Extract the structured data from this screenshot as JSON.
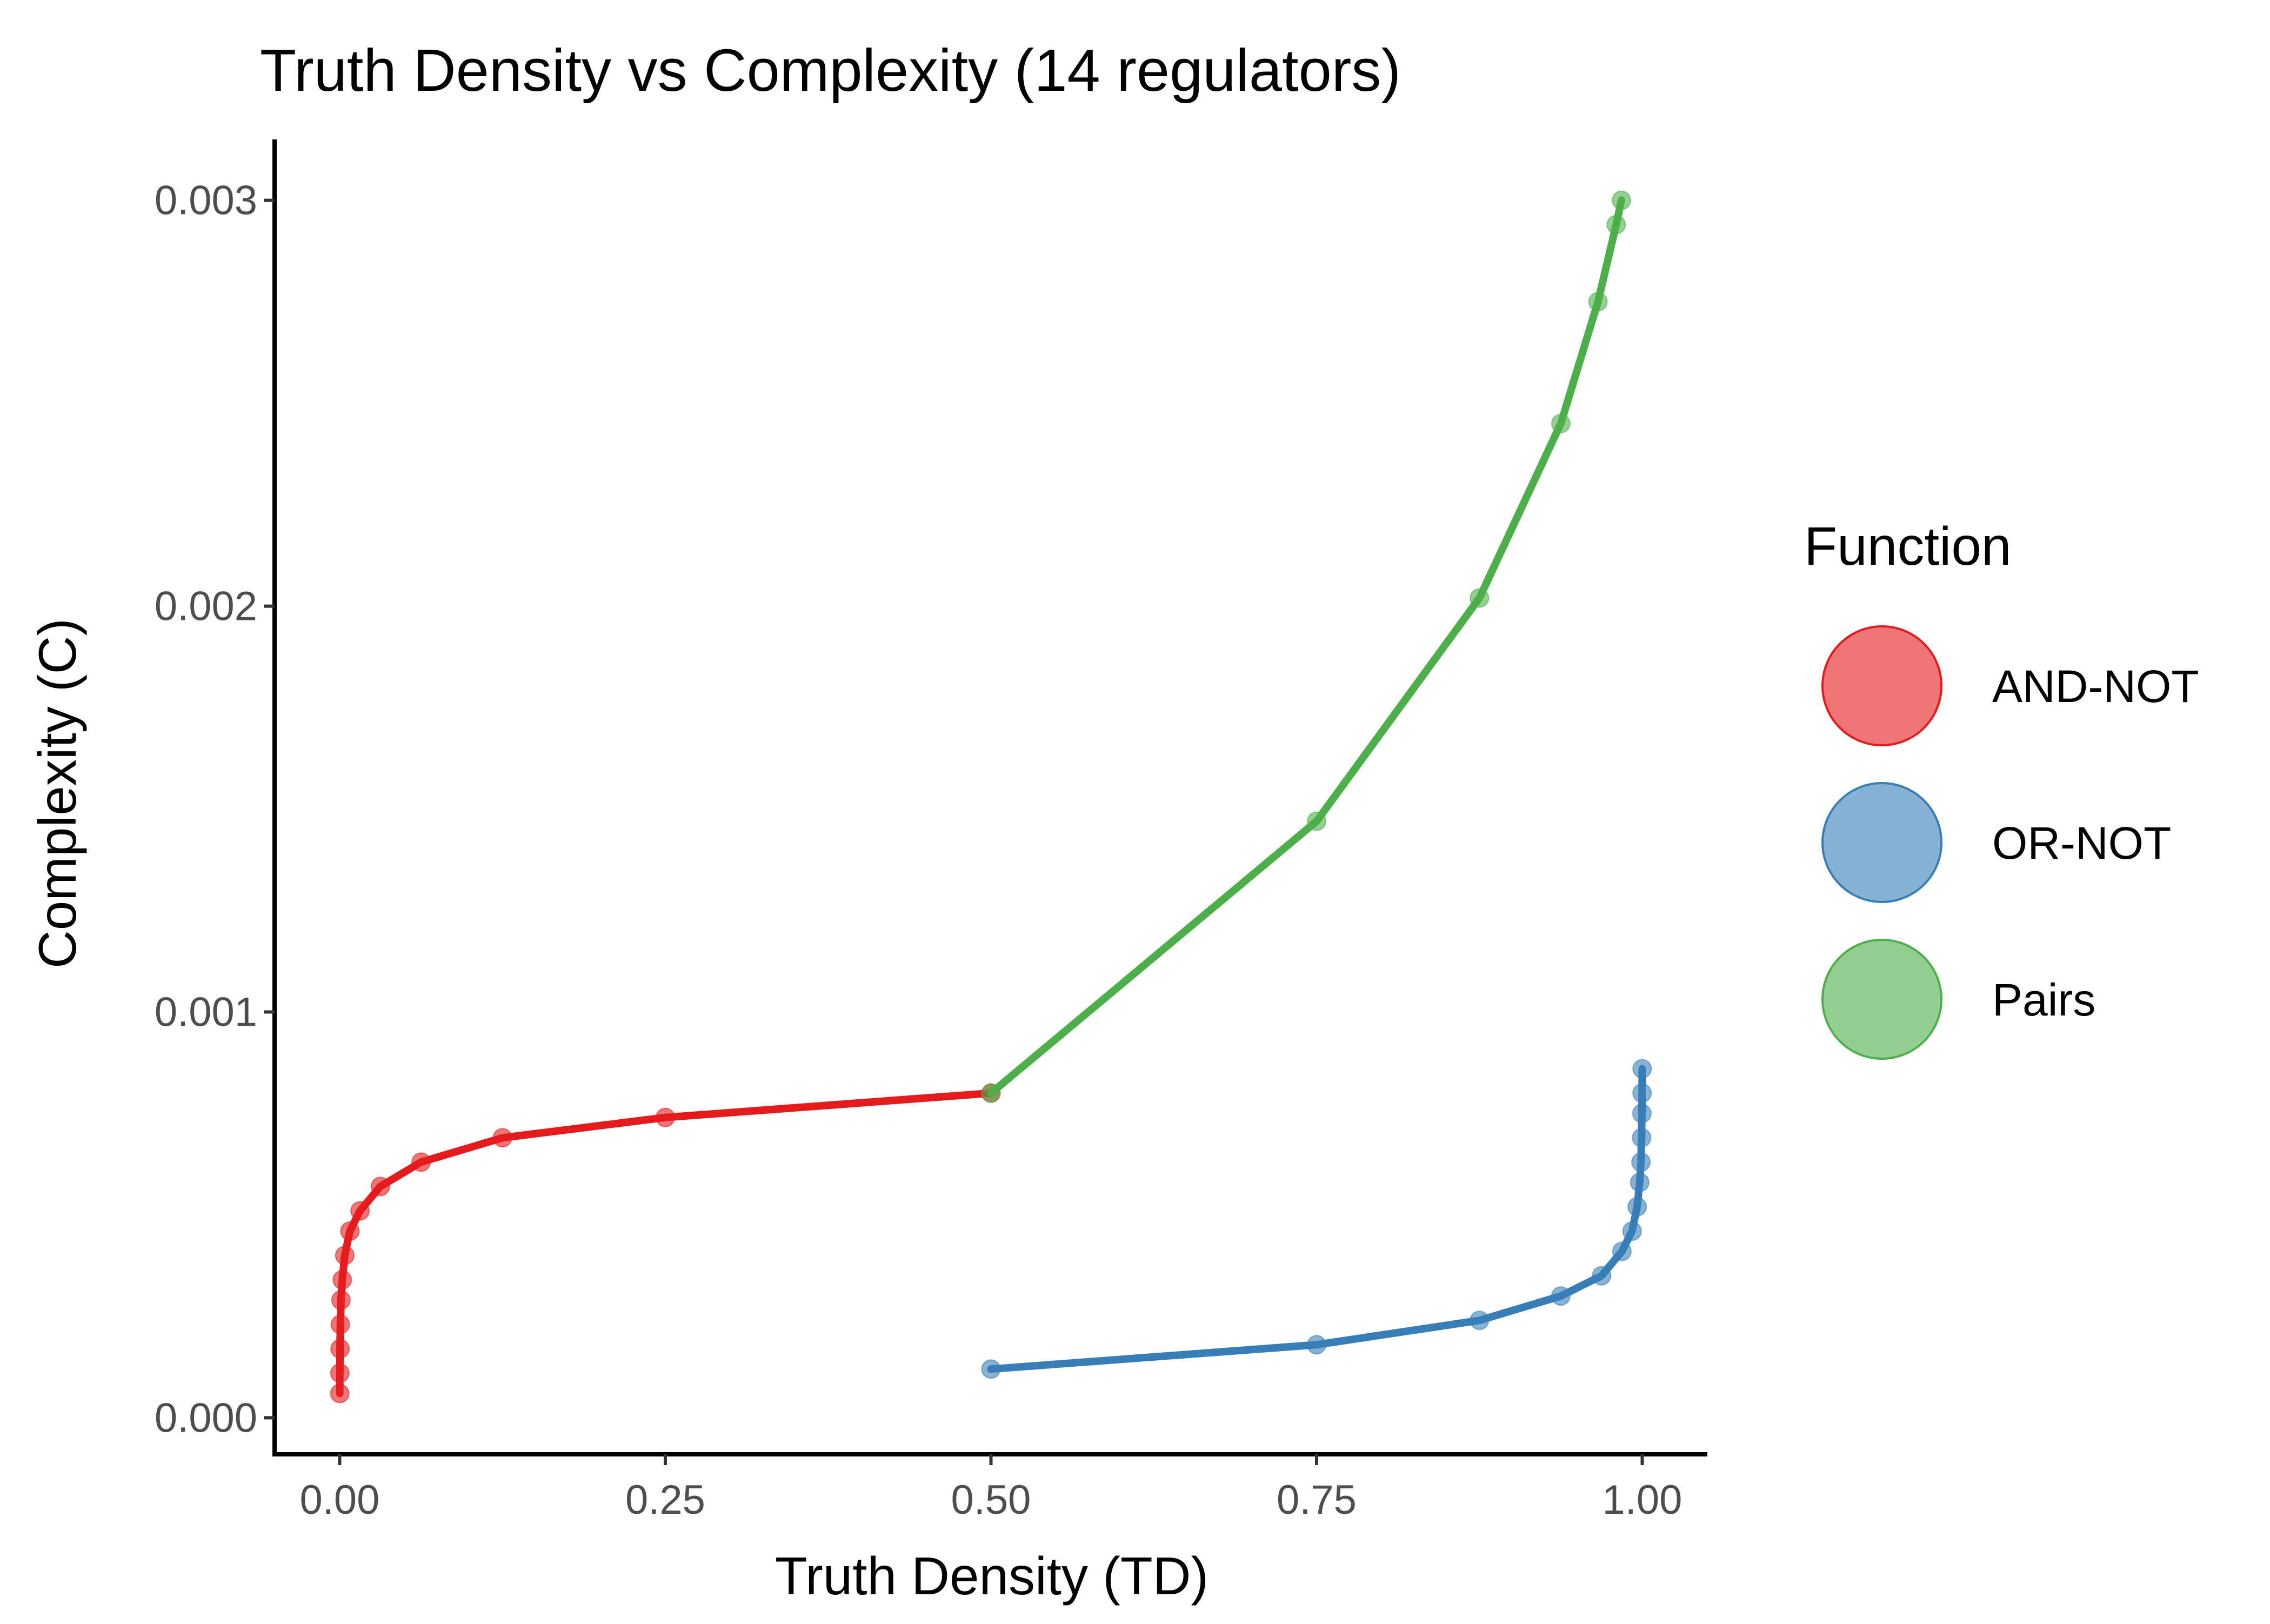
{
  "chart_data": {
    "type": "line",
    "title": "Truth Density vs Complexity (14 regulators)",
    "x_label": "Truth Density (TD)",
    "y_label": "Complexity (C)",
    "legend_title": "Function",
    "legend_position": "right",
    "series": [
      {
        "name": "AND-NOT",
        "color": "#e41a1c",
        "x": [
          0.5,
          0.25,
          0.125,
          0.0625,
          0.03125,
          0.015625,
          0.0078125,
          0.00390625,
          0.001953125,
          0.0009765625,
          0.00048828125,
          0.000244140625,
          0.0001220703125,
          6.103515625e-05
        ],
        "values": [
          0.0008,
          0.00074,
          0.00069,
          0.00063,
          0.00057,
          0.00051,
          0.00046,
          0.0004,
          0.00034,
          0.00029,
          0.00023,
          0.00017,
          0.00011,
          6e-05
        ]
      },
      {
        "name": "OR-NOT",
        "color": "#377eb8",
        "x": [
          0.5,
          0.75,
          0.875,
          0.9375,
          0.96875,
          0.984375,
          0.9921875,
          0.99609375,
          0.998046875,
          0.9990234375,
          0.99951171875,
          0.999755859375,
          0.9998779296875,
          0.99993896484375
        ],
        "values": [
          0.00012,
          0.00018,
          0.00024,
          0.0003,
          0.00035,
          0.00041,
          0.00046,
          0.00052,
          0.00058,
          0.00063,
          0.00069,
          0.00075,
          0.0008,
          0.00086
        ]
      },
      {
        "name": "Pairs",
        "color": "#4daf4a",
        "x": [
          0.5,
          0.75,
          0.875,
          0.9375,
          0.966,
          0.98,
          0.984
        ],
        "values": [
          0.0008,
          0.00147,
          0.00202,
          0.00245,
          0.00275,
          0.00294,
          0.003
        ]
      }
    ],
    "xlim": [
      -0.05,
      1.05
    ],
    "ylim": [
      -9e-05,
      0.00315
    ],
    "xticks": [
      {
        "value": 0,
        "label": "0.00"
      },
      0.25,
      {
        "value": 0.5,
        "label": "0.50"
      },
      0.75,
      {
        "value": 1,
        "label": "1.00"
      }
    ],
    "yticks": [
      {
        "value": 0,
        "label": "0.000"
      },
      0.001,
      0.002,
      0.003
    ],
    "grid": false
  }
}
